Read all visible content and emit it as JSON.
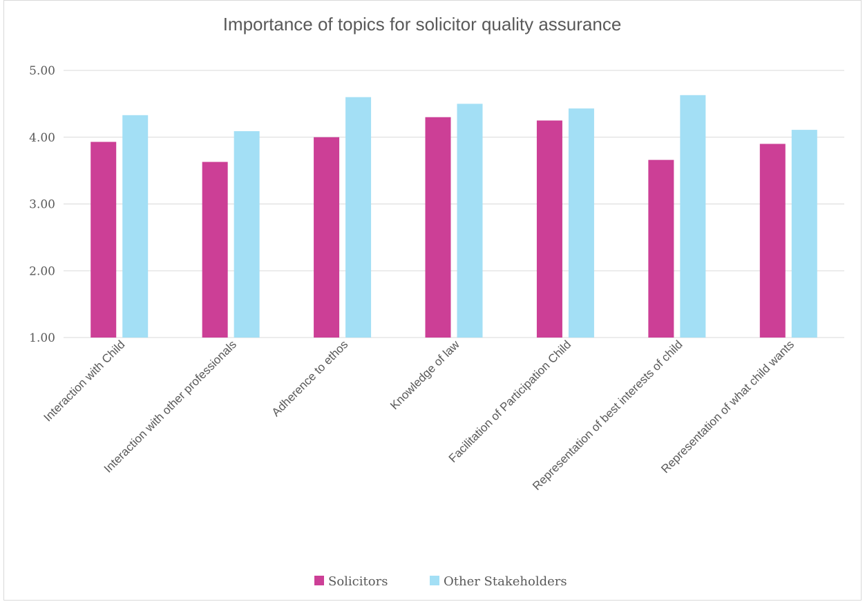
{
  "chart_data": {
    "type": "bar",
    "title": "Importance of topics for solicitor quality assurance",
    "categories": [
      "Interaction with Child",
      "Interaction with other professionals",
      "Adherence to ethos",
      "Knowledge of law",
      "Facilitation of Participation Child",
      "Representation of best interests of child",
      "Representation of what child wants"
    ],
    "series": [
      {
        "name": "Solicitors",
        "color": "#cc3f96",
        "values": [
          3.93,
          3.63,
          4.0,
          4.3,
          4.25,
          3.66,
          3.9
        ]
      },
      {
        "name": "Other Stakeholders",
        "color": "#a3dff5",
        "values": [
          4.33,
          4.09,
          4.6,
          4.5,
          4.43,
          4.63,
          4.11
        ]
      }
    ],
    "ylim": [
      1,
      5
    ],
    "yticks": [
      "1.00",
      "2.00",
      "3.00",
      "4.00",
      "5.00"
    ],
    "grid": true,
    "legend_position": "bottom"
  }
}
